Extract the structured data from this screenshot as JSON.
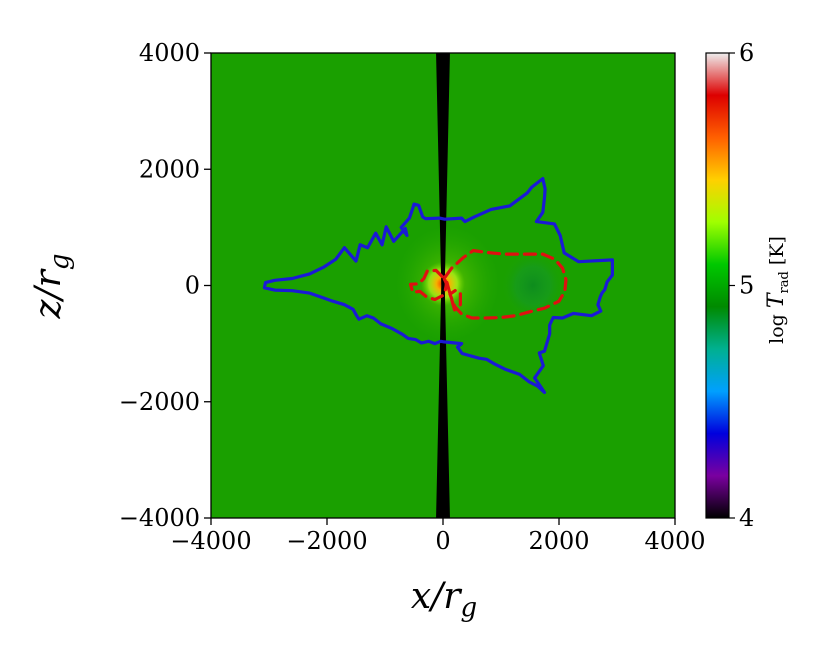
{
  "chart_data": {
    "type": "heatmap",
    "title": "",
    "xlabel": "x/r_g",
    "ylabel": "z/r_g",
    "xlim": [
      -4000,
      4000
    ],
    "ylim": [
      -4000,
      4000
    ],
    "xticks": [
      {
        "value": -4000,
        "label": "−4000"
      },
      {
        "value": -2000,
        "label": "−2000"
      },
      {
        "value": 0,
        "label": "0"
      },
      {
        "value": 2000,
        "label": "2000"
      },
      {
        "value": 4000,
        "label": "4000"
      }
    ],
    "yticks": [
      {
        "value": 4000,
        "label": "4000"
      },
      {
        "value": 2000,
        "label": "2000"
      },
      {
        "value": 0,
        "label": "0"
      },
      {
        "value": -2000,
        "label": "−2000"
      },
      {
        "value": -4000,
        "label": "−4000"
      }
    ],
    "grid": false,
    "background_value": 5.4,
    "colorbar": {
      "label": "log T_rad [K]",
      "range": [
        4,
        6
      ],
      "ticks": [
        {
          "value": 4,
          "label": "4"
        },
        {
          "value": 5,
          "label": "5"
        },
        {
          "value": 6,
          "label": "6"
        }
      ],
      "colors": [
        "#000000",
        "#7a00a0",
        "#0000dd",
        "#00a0ff",
        "#00b090",
        "#008a00",
        "#00c800",
        "#a0ff00",
        "#ffd000",
        "#ff6000",
        "#dd0000",
        "#eeeeee"
      ]
    },
    "axis_strip": {
      "x_halfwidth": 100,
      "value": 4.0,
      "color": "#000000"
    },
    "hot_core": {
      "x": 0,
      "z": 30,
      "value": 5.6
    },
    "cool_region": {
      "x": 1550,
      "z": 0,
      "rx": 550,
      "rz": 600,
      "value": 5.1
    },
    "contours": [
      {
        "name": "",
        "color": "#1a1ad6",
        "style": "solid",
        "points": [
          [
            30,
            1140
          ],
          [
            320,
            1160
          ],
          [
            380,
            1100
          ],
          [
            540,
            1180
          ],
          [
            830,
            1310
          ],
          [
            1150,
            1370
          ],
          [
            1450,
            1590
          ],
          [
            1530,
            1690
          ],
          [
            1720,
            1840
          ],
          [
            1760,
            1660
          ],
          [
            1750,
            1510
          ],
          [
            1720,
            1260
          ],
          [
            1610,
            1100
          ],
          [
            1920,
            1060
          ],
          [
            2020,
            860
          ],
          [
            2090,
            560
          ],
          [
            2340,
            410
          ],
          [
            2920,
            440
          ],
          [
            2920,
            180
          ],
          [
            2830,
            60
          ],
          [
            2790,
            -70
          ],
          [
            2740,
            -130
          ],
          [
            2710,
            -200
          ],
          [
            2670,
            -330
          ],
          [
            2720,
            -440
          ],
          [
            2560,
            -520
          ],
          [
            2250,
            -480
          ],
          [
            2060,
            -560
          ],
          [
            1900,
            -550
          ],
          [
            1840,
            -680
          ],
          [
            1840,
            -830
          ],
          [
            1750,
            -1130
          ],
          [
            1660,
            -1160
          ],
          [
            1730,
            -1380
          ],
          [
            1580,
            -1590
          ],
          [
            1690,
            -1750
          ],
          [
            1750,
            -1840
          ],
          [
            1630,
            -1730
          ],
          [
            1490,
            -1660
          ],
          [
            1320,
            -1530
          ],
          [
            1070,
            -1440
          ],
          [
            870,
            -1340
          ],
          [
            750,
            -1270
          ],
          [
            620,
            -1250
          ],
          [
            330,
            -1170
          ],
          [
            250,
            -1060
          ],
          [
            320,
            -1000
          ],
          [
            20,
            -970
          ],
          [
            -40,
            -960
          ],
          [
            -140,
            -1000
          ],
          [
            -250,
            -960
          ],
          [
            -370,
            -990
          ],
          [
            -470,
            -930
          ],
          [
            -600,
            -910
          ],
          [
            -700,
            -840
          ],
          [
            -880,
            -740
          ],
          [
            -1070,
            -660
          ],
          [
            -1200,
            -560
          ],
          [
            -1310,
            -520
          ],
          [
            -1450,
            -580
          ],
          [
            -1500,
            -500
          ],
          [
            -1550,
            -410
          ],
          [
            -1700,
            -330
          ],
          [
            -1900,
            -270
          ],
          [
            -2100,
            -200
          ],
          [
            -2300,
            -130
          ],
          [
            -2600,
            -90
          ],
          [
            -2900,
            -80
          ],
          [
            -3080,
            -40
          ],
          [
            -3060,
            50
          ],
          [
            -2900,
            90
          ],
          [
            -2600,
            120
          ],
          [
            -2300,
            200
          ],
          [
            -2050,
            320
          ],
          [
            -1850,
            450
          ],
          [
            -1700,
            650
          ],
          [
            -1500,
            420
          ],
          [
            -1430,
            700
          ],
          [
            -1300,
            650
          ],
          [
            -1160,
            900
          ],
          [
            -1050,
            700
          ],
          [
            -980,
            1010
          ],
          [
            -850,
            760
          ],
          [
            -650,
            980
          ],
          [
            -620,
            860
          ],
          [
            -720,
            1000
          ],
          [
            -580,
            1160
          ],
          [
            -520,
            1330
          ],
          [
            -500,
            1400
          ],
          [
            -420,
            1380
          ],
          [
            -350,
            1180
          ],
          [
            -300,
            1150
          ],
          [
            -60,
            1160
          ],
          [
            -10,
            1150
          ]
        ]
      },
      {
        "name": "",
        "color": "#e01010",
        "style": "dashed",
        "points": [
          [
            40,
            150
          ],
          [
            150,
            300
          ],
          [
            350,
            480
          ],
          [
            520,
            600
          ],
          [
            750,
            570
          ],
          [
            1050,
            540
          ],
          [
            1400,
            540
          ],
          [
            1720,
            540
          ],
          [
            1930,
            450
          ],
          [
            2060,
            300
          ],
          [
            2120,
            100
          ],
          [
            2100,
            -100
          ],
          [
            2000,
            -270
          ],
          [
            1750,
            -390
          ],
          [
            1500,
            -450
          ],
          [
            1250,
            -520
          ],
          [
            1000,
            -550
          ],
          [
            750,
            -560
          ],
          [
            500,
            -560
          ],
          [
            320,
            -490
          ],
          [
            200,
            -360
          ],
          [
            120,
            -150
          ],
          [
            220,
            -80
          ],
          [
            300,
            -130
          ],
          [
            300,
            -330
          ],
          [
            200,
            -420
          ]
        ]
      },
      {
        "name": "",
        "color": "#e01010",
        "style": "dashed",
        "points": [
          [
            -10,
            150
          ],
          [
            -120,
            260
          ],
          [
            -270,
            250
          ],
          [
            -330,
            120
          ],
          [
            -420,
            30
          ],
          [
            -560,
            20
          ],
          [
            -520,
            -120
          ],
          [
            -400,
            -100
          ],
          [
            -280,
            -200
          ],
          [
            -140,
            -240
          ],
          [
            0,
            -170
          ],
          [
            40,
            -80
          ],
          [
            60,
            30
          ],
          [
            30,
            100
          ]
        ]
      }
    ]
  }
}
